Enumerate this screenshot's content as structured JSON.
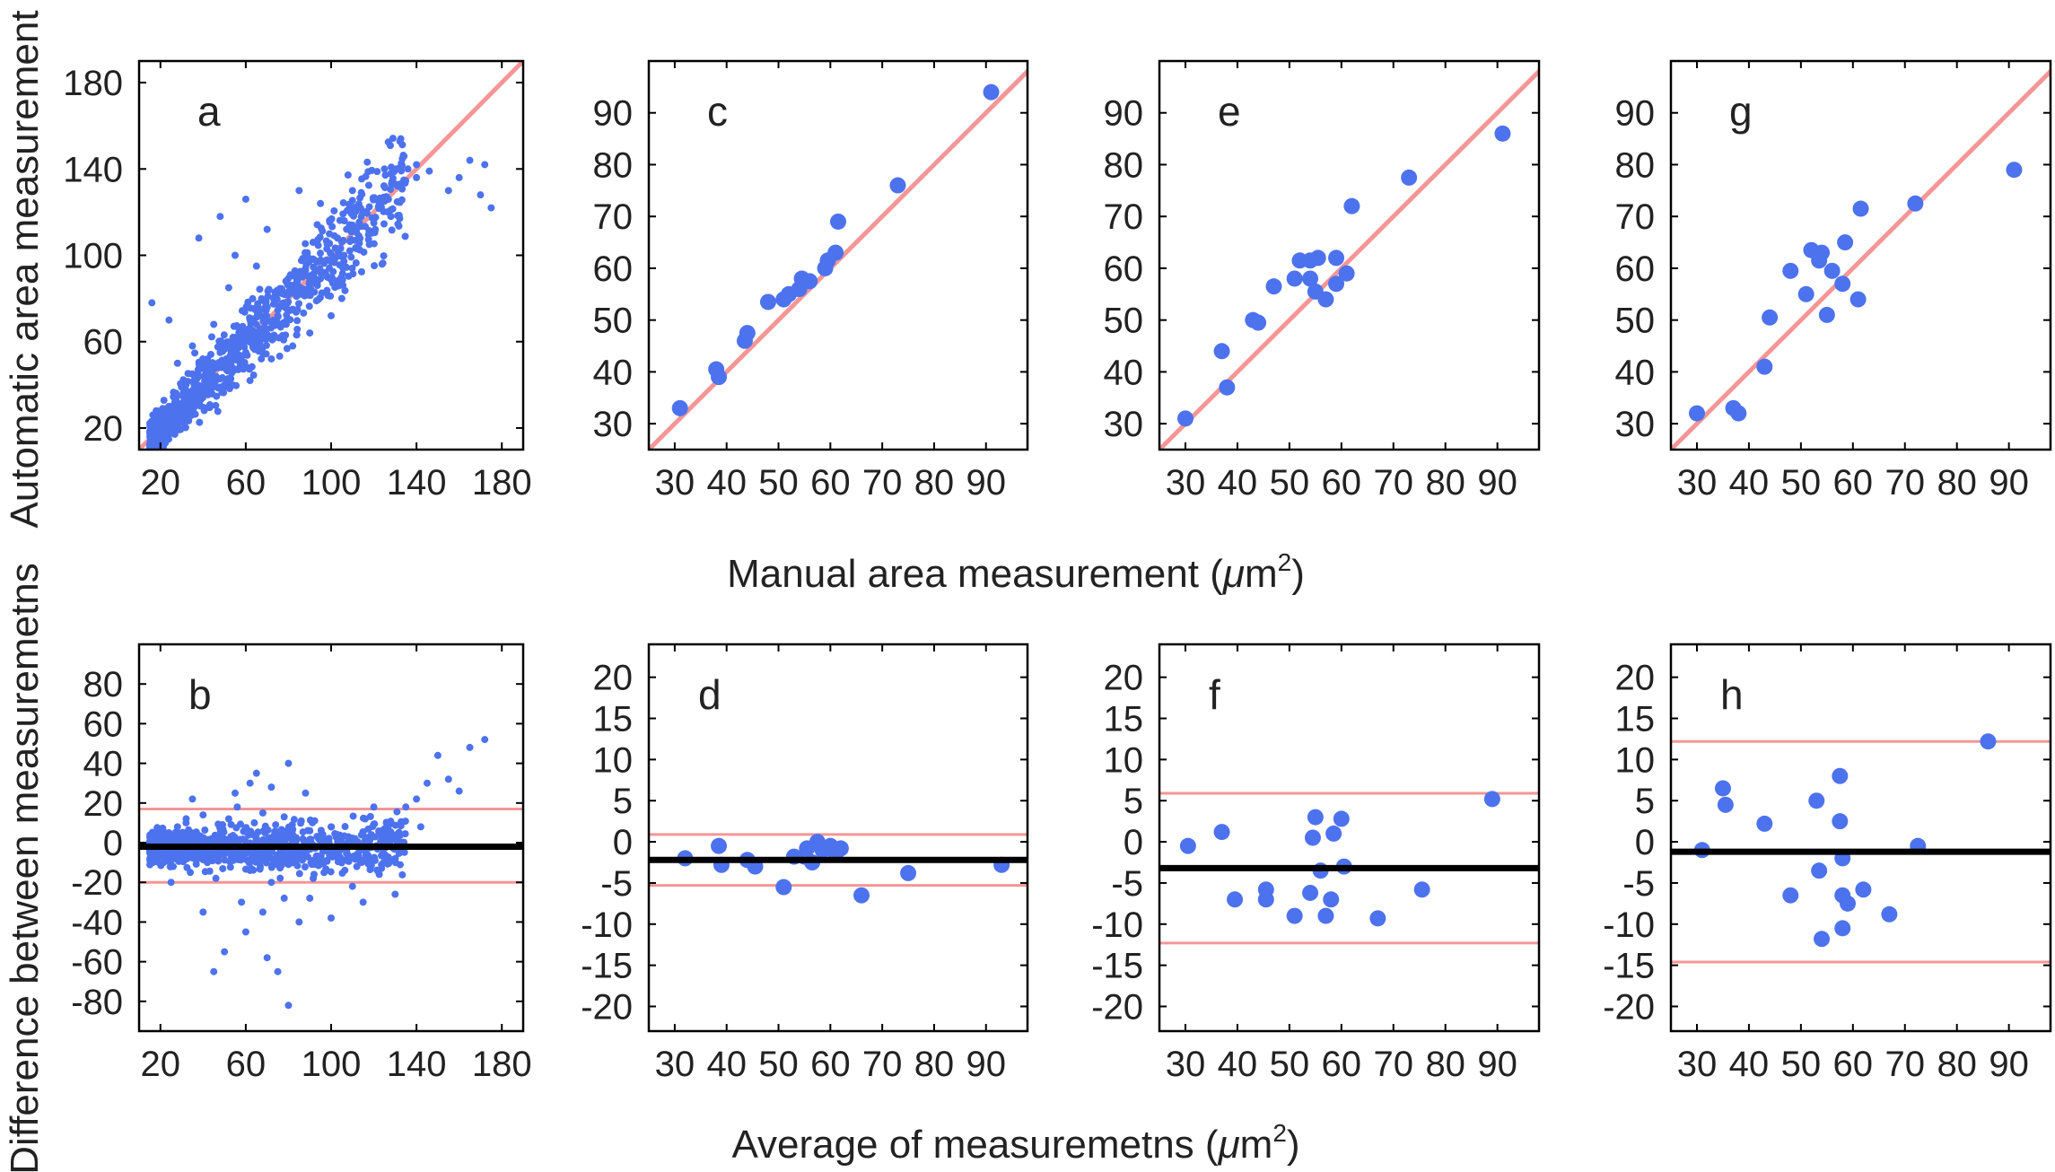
{
  "figure": {
    "top_ylabel": "Automatic area measurement",
    "bottom_ylabel": "Difference between measuremetns",
    "top_xlabel_main": "Manual area measurement (",
    "top_xlabel_mu": "μ",
    "top_xlabel_unit": "m",
    "top_xlabel_exp": "2",
    "top_xlabel_end": ")",
    "bottom_xlabel_main": "Average of measuremetns (",
    "bottom_xlabel_mu": "μ",
    "bottom_xlabel_unit": "m",
    "bottom_xlabel_exp": "2",
    "bottom_xlabel_end": ")"
  },
  "colors": {
    "points": "#4d72ee",
    "reference_lines": "#f59696",
    "mean_line": "#000000"
  },
  "chart_data": [
    {
      "id": "a",
      "label": "a",
      "type": "scatter",
      "kind": "correlation",
      "point_style": "dense",
      "xlim": [
        10,
        190
      ],
      "ylim": [
        10,
        190
      ],
      "xticks": [
        20,
        60,
        100,
        140,
        180
      ],
      "yticks": [
        20,
        60,
        100,
        140,
        180
      ],
      "identity_line": true,
      "grid": false,
      "points": [
        [
          16,
          22
        ],
        [
          18,
          28
        ],
        [
          20,
          21
        ],
        [
          22,
          26
        ],
        [
          24,
          30
        ],
        [
          26,
          23
        ],
        [
          28,
          35
        ],
        [
          30,
          27
        ],
        [
          32,
          40
        ],
        [
          34,
          33
        ],
        [
          35,
          45
        ],
        [
          36,
          30
        ],
        [
          38,
          44
        ],
        [
          40,
          38
        ],
        [
          42,
          52
        ],
        [
          44,
          47
        ],
        [
          46,
          42
        ],
        [
          48,
          55
        ],
        [
          50,
          58
        ],
        [
          52,
          49
        ],
        [
          54,
          62
        ],
        [
          55,
          54
        ],
        [
          57,
          60
        ],
        [
          58,
          66
        ],
        [
          60,
          55
        ],
        [
          62,
          70
        ],
        [
          63,
          61
        ],
        [
          65,
          68
        ],
        [
          66,
          74
        ],
        [
          68,
          63
        ],
        [
          70,
          76
        ],
        [
          72,
          69
        ],
        [
          73,
          80
        ],
        [
          75,
          72
        ],
        [
          77,
          84
        ],
        [
          78,
          78
        ],
        [
          80,
          86
        ],
        [
          82,
          75
        ],
        [
          84,
          90
        ],
        [
          86,
          82
        ],
        [
          88,
          94
        ],
        [
          90,
          88
        ],
        [
          92,
          98
        ],
        [
          95,
          92
        ],
        [
          98,
          103
        ],
        [
          100,
          97
        ],
        [
          103,
          108
        ],
        [
          106,
          100
        ],
        [
          110,
          114
        ],
        [
          113,
          109
        ],
        [
          116,
          120
        ],
        [
          120,
          115
        ],
        [
          124,
          125
        ],
        [
          128,
          121
        ],
        [
          132,
          132
        ],
        [
          136,
          140
        ],
        [
          140,
          136
        ],
        [
          146,
          139
        ],
        [
          155,
          130
        ],
        [
          160,
          136
        ],
        [
          165,
          144
        ],
        [
          170,
          128
        ],
        [
          172,
          142
        ],
        [
          175,
          122
        ],
        [
          16,
          78
        ],
        [
          24,
          70
        ],
        [
          38,
          108
        ],
        [
          48,
          118
        ],
        [
          55,
          100
        ],
        [
          60,
          126
        ],
        [
          70,
          112
        ],
        [
          85,
          130
        ],
        [
          95,
          124
        ],
        [
          110,
          130
        ],
        [
          125,
          140
        ],
        [
          128,
          118
        ],
        [
          140,
          142
        ],
        [
          62,
          42
        ],
        [
          72,
          52
        ],
        [
          82,
          58
        ],
        [
          90,
          64
        ],
        [
          100,
          72
        ],
        [
          105,
          80
        ],
        [
          45,
          68
        ],
        [
          35,
          58
        ],
        [
          28,
          50
        ],
        [
          52,
          85
        ],
        [
          65,
          95
        ]
      ]
    },
    {
      "id": "b",
      "label": "b",
      "type": "scatter",
      "kind": "bland-altman",
      "point_style": "dense",
      "xlim": [
        10,
        190
      ],
      "ylim": [
        -95,
        100
      ],
      "xticks": [
        20,
        60,
        100,
        140,
        180
      ],
      "yticks": [
        -80,
        -60,
        -40,
        -20,
        0,
        20,
        40,
        60,
        80
      ],
      "mean": -2,
      "loa": [
        -20,
        17
      ],
      "grid": false,
      "points": [
        [
          18,
          -5
        ],
        [
          20,
          3
        ],
        [
          22,
          -8
        ],
        [
          24,
          5
        ],
        [
          26,
          -12
        ],
        [
          28,
          8
        ],
        [
          30,
          -3
        ],
        [
          32,
          10
        ],
        [
          34,
          -15
        ],
        [
          36,
          4
        ],
        [
          38,
          -6
        ],
        [
          40,
          14
        ],
        [
          42,
          -10
        ],
        [
          44,
          2
        ],
        [
          46,
          -18
        ],
        [
          48,
          7
        ],
        [
          50,
          -4
        ],
        [
          52,
          12
        ],
        [
          54,
          -9
        ],
        [
          56,
          18
        ],
        [
          58,
          -2
        ],
        [
          60,
          6
        ],
        [
          62,
          -14
        ],
        [
          64,
          10
        ],
        [
          66,
          -7
        ],
        [
          68,
          15
        ],
        [
          70,
          -1
        ],
        [
          72,
          -20
        ],
        [
          74,
          9
        ],
        [
          76,
          -5
        ],
        [
          78,
          13
        ],
        [
          80,
          -11
        ],
        [
          82,
          4
        ],
        [
          84,
          -8
        ],
        [
          86,
          11
        ],
        [
          88,
          -3
        ],
        [
          90,
          6
        ],
        [
          92,
          -16
        ],
        [
          95,
          2
        ],
        [
          98,
          -9
        ],
        [
          100,
          8
        ],
        [
          104,
          -4
        ],
        [
          108,
          3
        ],
        [
          112,
          -6
        ],
        [
          116,
          12
        ],
        [
          120,
          -2
        ],
        [
          125,
          5
        ],
        [
          130,
          -3
        ],
        [
          135,
          18
        ],
        [
          140,
          22
        ],
        [
          145,
          30
        ],
        [
          150,
          44
        ],
        [
          155,
          32
        ],
        [
          160,
          26
        ],
        [
          165,
          48
        ],
        [
          172,
          52
        ],
        [
          45,
          -65
        ],
        [
          50,
          -55
        ],
        [
          60,
          -45
        ],
        [
          70,
          -58
        ],
        [
          75,
          -65
        ],
        [
          80,
          -82
        ],
        [
          85,
          -40
        ],
        [
          58,
          -30
        ],
        [
          68,
          -35
        ],
        [
          78,
          -28
        ],
        [
          55,
          25
        ],
        [
          62,
          30
        ],
        [
          72,
          28
        ],
        [
          80,
          40
        ],
        [
          90,
          -28
        ],
        [
          100,
          -38
        ],
        [
          110,
          -22
        ],
        [
          115,
          -30
        ],
        [
          130,
          -26
        ],
        [
          40,
          -35
        ],
        [
          35,
          22
        ],
        [
          25,
          -20
        ],
        [
          65,
          35
        ],
        [
          88,
          25
        ],
        [
          120,
          18
        ],
        [
          142,
          8
        ]
      ]
    },
    {
      "id": "c",
      "label": "c",
      "type": "scatter",
      "kind": "correlation",
      "point_style": "large",
      "xlim": [
        25,
        98
      ],
      "ylim": [
        25,
        100
      ],
      "xticks": [
        30,
        40,
        50,
        60,
        70,
        80,
        90
      ],
      "yticks": [
        30,
        40,
        50,
        60,
        70,
        80,
        90
      ],
      "identity_line": true,
      "grid": false,
      "points": [
        [
          31,
          33
        ],
        [
          38,
          40.5
        ],
        [
          38.5,
          39
        ],
        [
          43.5,
          46
        ],
        [
          44,
          47.5
        ],
        [
          48,
          53.5
        ],
        [
          51,
          54
        ],
        [
          52,
          55
        ],
        [
          54,
          56
        ],
        [
          54.5,
          58
        ],
        [
          56,
          57.5
        ],
        [
          59,
          60
        ],
        [
          59.5,
          61.5
        ],
        [
          61,
          63
        ],
        [
          61.5,
          69
        ],
        [
          73,
          76
        ],
        [
          91,
          94
        ]
      ]
    },
    {
      "id": "d",
      "label": "d",
      "type": "scatter",
      "kind": "bland-altman",
      "point_style": "large",
      "xlim": [
        25,
        98
      ],
      "ylim": [
        -23,
        24
      ],
      "xticks": [
        30,
        40,
        50,
        60,
        70,
        80,
        90
      ],
      "yticks": [
        -20,
        -15,
        -10,
        -5,
        0,
        5,
        10,
        15,
        20
      ],
      "mean": -2.2,
      "loa": [
        -5.3,
        0.9
      ],
      "grid": false,
      "points": [
        [
          32,
          -2
        ],
        [
          38.5,
          -0.5
        ],
        [
          39,
          -2.8
        ],
        [
          44,
          -2.2
        ],
        [
          45.5,
          -3
        ],
        [
          51,
          -5.5
        ],
        [
          53,
          -1.8
        ],
        [
          55,
          -1.8
        ],
        [
          55.5,
          -0.8
        ],
        [
          56.5,
          -2.5
        ],
        [
          57.5,
          0
        ],
        [
          58.5,
          -1
        ],
        [
          60,
          -0.5
        ],
        [
          61,
          -1.5
        ],
        [
          62,
          -0.8
        ],
        [
          66,
          -6.5
        ],
        [
          75,
          -3.8
        ],
        [
          93,
          -2.8
        ]
      ]
    },
    {
      "id": "e",
      "label": "e",
      "type": "scatter",
      "kind": "correlation",
      "point_style": "large",
      "xlim": [
        25,
        98
      ],
      "ylim": [
        25,
        100
      ],
      "xticks": [
        30,
        40,
        50,
        60,
        70,
        80,
        90
      ],
      "yticks": [
        30,
        40,
        50,
        60,
        70,
        80,
        90
      ],
      "identity_line": true,
      "grid": false,
      "points": [
        [
          30,
          31
        ],
        [
          37,
          44
        ],
        [
          38,
          37
        ],
        [
          43,
          50
        ],
        [
          44,
          49.5
        ],
        [
          47,
          56.5
        ],
        [
          51,
          58
        ],
        [
          52,
          61.5
        ],
        [
          54,
          61.5
        ],
        [
          54,
          58
        ],
        [
          55,
          55.5
        ],
        [
          55.5,
          62
        ],
        [
          57,
          54
        ],
        [
          59,
          57
        ],
        [
          59,
          62
        ],
        [
          61,
          59
        ],
        [
          62,
          72
        ],
        [
          73,
          77.5
        ],
        [
          91,
          86
        ]
      ]
    },
    {
      "id": "f",
      "label": "f",
      "type": "scatter",
      "kind": "bland-altman",
      "point_style": "large",
      "xlim": [
        25,
        98
      ],
      "ylim": [
        -23,
        24
      ],
      "xticks": [
        30,
        40,
        50,
        60,
        70,
        80,
        90
      ],
      "yticks": [
        -20,
        -15,
        -10,
        -5,
        0,
        5,
        10,
        15,
        20
      ],
      "mean": -3.2,
      "loa": [
        -12.3,
        5.9
      ],
      "grid": false,
      "points": [
        [
          30.5,
          -0.5
        ],
        [
          37,
          1.2
        ],
        [
          39.5,
          -7
        ],
        [
          45.5,
          -5.8
        ],
        [
          45.5,
          -7
        ],
        [
          51,
          -9
        ],
        [
          54,
          -6.2
        ],
        [
          54.5,
          0.5
        ],
        [
          55,
          3
        ],
        [
          56,
          -3.5
        ],
        [
          57,
          -9
        ],
        [
          58,
          -7
        ],
        [
          58.5,
          1
        ],
        [
          60,
          2.8
        ],
        [
          60.5,
          -3
        ],
        [
          67,
          -9.3
        ],
        [
          75.5,
          -5.8
        ],
        [
          89,
          5.2
        ]
      ]
    },
    {
      "id": "g",
      "label": "g",
      "type": "scatter",
      "kind": "correlation",
      "point_style": "large",
      "xlim": [
        25,
        98
      ],
      "ylim": [
        25,
        100
      ],
      "xticks": [
        30,
        40,
        50,
        60,
        70,
        80,
        90
      ],
      "yticks": [
        30,
        40,
        50,
        60,
        70,
        80,
        90
      ],
      "identity_line": true,
      "grid": false,
      "points": [
        [
          30,
          32
        ],
        [
          37,
          33
        ],
        [
          38,
          32
        ],
        [
          43,
          41
        ],
        [
          44,
          50.5
        ],
        [
          48,
          59.5
        ],
        [
          51,
          55
        ],
        [
          52,
          63.5
        ],
        [
          53.5,
          61.5
        ],
        [
          54,
          63
        ],
        [
          55,
          51
        ],
        [
          56,
          59.5
        ],
        [
          58,
          57
        ],
        [
          58.5,
          65
        ],
        [
          61,
          54
        ],
        [
          61.5,
          71.5
        ],
        [
          72,
          72.5
        ],
        [
          91,
          79
        ]
      ]
    },
    {
      "id": "h",
      "label": "h",
      "type": "scatter",
      "kind": "bland-altman",
      "point_style": "large",
      "xlim": [
        25,
        98
      ],
      "ylim": [
        -23,
        24
      ],
      "xticks": [
        30,
        40,
        50,
        60,
        70,
        80,
        90
      ],
      "yticks": [
        -20,
        -15,
        -10,
        -5,
        0,
        5,
        10,
        15,
        20
      ],
      "mean": -1.2,
      "loa": [
        -14.6,
        12.2
      ],
      "grid": false,
      "points": [
        [
          31,
          -1
        ],
        [
          35,
          6.5
        ],
        [
          35.5,
          4.5
        ],
        [
          43,
          2.2
        ],
        [
          48,
          -6.5
        ],
        [
          53,
          5
        ],
        [
          53.5,
          -3.5
        ],
        [
          54,
          -11.8
        ],
        [
          57.5,
          8
        ],
        [
          57.5,
          2.5
        ],
        [
          58,
          -2
        ],
        [
          58,
          -6.5
        ],
        [
          58,
          -10.5
        ],
        [
          59,
          -7.5
        ],
        [
          62,
          -5.8
        ],
        [
          67,
          -8.8
        ],
        [
          72.5,
          -0.5
        ],
        [
          86,
          12.2
        ]
      ]
    }
  ]
}
